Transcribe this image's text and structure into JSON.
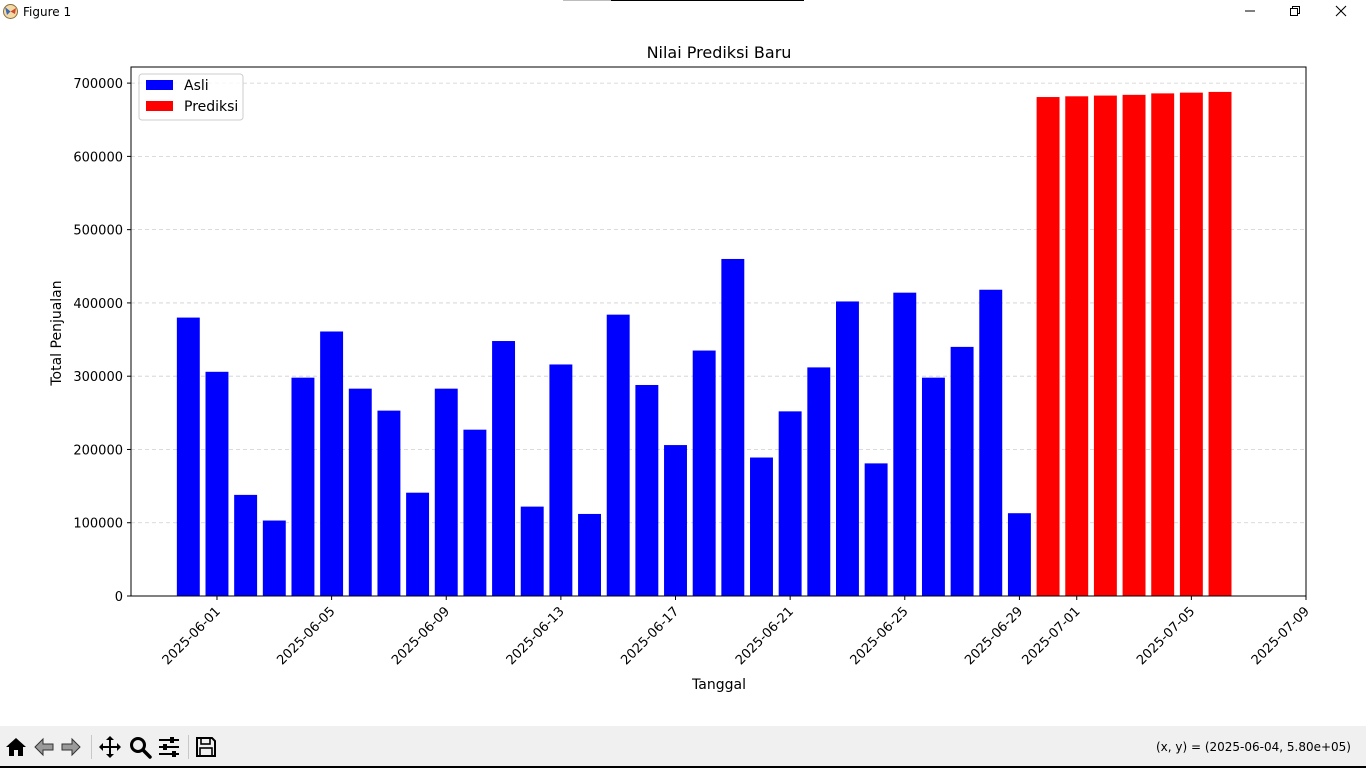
{
  "window": {
    "title": "Figure 1",
    "controls": [
      "minimize",
      "restore",
      "close"
    ]
  },
  "toolbar": {
    "buttons": [
      "home-icon",
      "back-icon",
      "forward-icon",
      "pan-icon",
      "zoom-icon",
      "configure-subplots-icon",
      "save-icon"
    ],
    "coord_readout": "(x, y) = (2025-06-04, 5.80e+05)"
  },
  "chart_data": {
    "type": "bar",
    "title": "Nilai Prediksi Baru",
    "xlabel": "Tanggal",
    "ylabel": "Total Penjualan",
    "ylim": [
      0,
      722000
    ],
    "xlim": [
      "2025-05-29",
      "2025-07-09"
    ],
    "grid": "y-dashed",
    "legend_position": "top-left",
    "yticks": [
      0,
      100000,
      200000,
      300000,
      400000,
      500000,
      600000,
      700000
    ],
    "xticks": [
      "2025-06-01",
      "2025-06-05",
      "2025-06-09",
      "2025-06-13",
      "2025-06-17",
      "2025-06-21",
      "2025-06-25",
      "2025-06-29",
      "2025-07-01",
      "2025-07-05",
      "2025-07-09"
    ],
    "series": [
      {
        "name": "Asli",
        "color": "#0000ff",
        "x": [
          "2025-05-31",
          "2025-06-01",
          "2025-06-02",
          "2025-06-03",
          "2025-06-04",
          "2025-06-05",
          "2025-06-06",
          "2025-06-07",
          "2025-06-08",
          "2025-06-09",
          "2025-06-10",
          "2025-06-11",
          "2025-06-12",
          "2025-06-13",
          "2025-06-14",
          "2025-06-15",
          "2025-06-16",
          "2025-06-17",
          "2025-06-18",
          "2025-06-19",
          "2025-06-20",
          "2025-06-21",
          "2025-06-22",
          "2025-06-23",
          "2025-06-24",
          "2025-06-25",
          "2025-06-26",
          "2025-06-27",
          "2025-06-28",
          "2025-06-29"
        ],
        "values": [
          380000,
          306000,
          138000,
          103000,
          298000,
          361000,
          283000,
          253000,
          141000,
          283000,
          227000,
          348000,
          122000,
          316000,
          112000,
          384000,
          288000,
          206000,
          335000,
          460000,
          189000,
          252000,
          312000,
          402000,
          181000,
          414000,
          298000,
          340000,
          418000,
          113000
        ]
      },
      {
        "name": "Prediksi",
        "color": "#ff0000",
        "x": [
          "2025-06-30",
          "2025-07-01",
          "2025-07-02",
          "2025-07-03",
          "2025-07-04",
          "2025-07-05",
          "2025-07-06"
        ],
        "values": [
          681000,
          682000,
          683000,
          684000,
          686000,
          687000,
          688000
        ]
      }
    ]
  }
}
